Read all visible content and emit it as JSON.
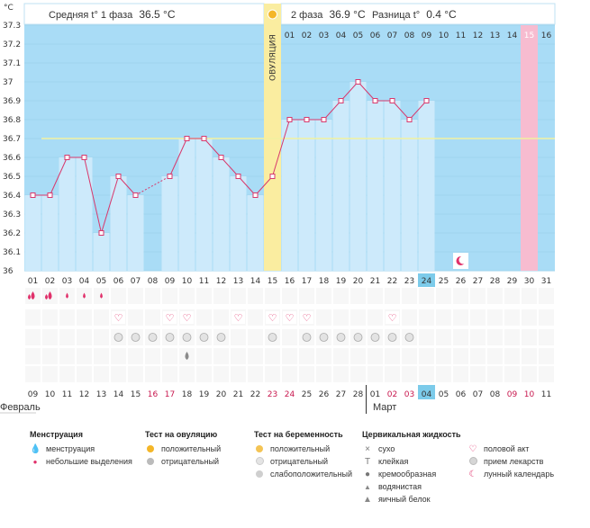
{
  "header": {
    "phase1_label": "Средняя t° 1 фаза",
    "phase1_value": "36.5 °C",
    "phase2_label": "2 фаза",
    "phase2_value": "36.9 °C",
    "diff_label": "Разница t°",
    "diff_value": "0.4 °C",
    "ovulation_label": "ОВУЛЯЦИЯ"
  },
  "axis": {
    "unit": "°C"
  },
  "months": {
    "left": "Февраль",
    "right": "Март"
  },
  "colors": {
    "bar_fill": "#cdeafb",
    "background": "#a9dcf6",
    "line": "#d8386c",
    "ovulation": "#faeda0",
    "highlight_day": "#f7bcd0",
    "coverline": "#f2f2a0"
  },
  "chart_data": {
    "type": "bar",
    "ylim": [
      36.0,
      37.3
    ],
    "yticks": [
      "36",
      "36.1",
      "36.2",
      "36.3",
      "36.4",
      "36.5",
      "36.6",
      "36.7",
      "36.8",
      "36.9",
      "37",
      "37.1",
      "37.2",
      "37.3"
    ],
    "coverline": 36.7,
    "cycle_days": [
      "01",
      "02",
      "03",
      "04",
      "05",
      "06",
      "07",
      "08",
      "09",
      "10",
      "11",
      "12",
      "13",
      "14",
      "15",
      "16",
      "17",
      "18",
      "19",
      "20",
      "21",
      "22",
      "23",
      "24",
      "25",
      "26",
      "27",
      "28",
      "29",
      "30",
      "31"
    ],
    "values": [
      36.4,
      36.4,
      36.6,
      36.6,
      36.2,
      36.5,
      36.4,
      null,
      36.5,
      36.7,
      36.7,
      36.6,
      36.5,
      36.4,
      36.5,
      36.8,
      36.8,
      36.8,
      36.9,
      37.0,
      36.9,
      36.9,
      36.8,
      36.9,
      null,
      null,
      null,
      null,
      null,
      null,
      null
    ],
    "phase2_day_numbers": [
      "01",
      "02",
      "03",
      "04",
      "05",
      "06",
      "07",
      "08",
      "09",
      "10",
      "11",
      "12",
      "13",
      "14",
      "15",
      "16"
    ],
    "calendar_dates": [
      "09",
      "10",
      "11",
      "12",
      "13",
      "14",
      "15",
      "16",
      "17",
      "18",
      "19",
      "20",
      "21",
      "22",
      "23",
      "24",
      "25",
      "26",
      "27",
      "28",
      "01",
      "02",
      "03",
      "04",
      "05",
      "06",
      "07",
      "08",
      "09",
      "10",
      "11"
    ],
    "weekend_days": [
      7,
      8,
      14,
      15,
      21,
      22,
      28,
      29
    ],
    "ovulation_day": 15,
    "current_day": 24,
    "highlight_day": 30,
    "moon_day": 26,
    "markers": {
      "menstruation": [
        1,
        2,
        3,
        4,
        5
      ],
      "intercourse": [
        6,
        9,
        10,
        13,
        15,
        16,
        17,
        22
      ],
      "medication": [
        6,
        7,
        8,
        9,
        10,
        11,
        12,
        15,
        17,
        18,
        19,
        20,
        21,
        22,
        23
      ],
      "watery": [
        10
      ]
    }
  },
  "legend": {
    "menstruation": {
      "title": "Менструация",
      "items": [
        "менструация",
        "небольшие выделения"
      ]
    },
    "ovulation_test": {
      "title": "Тест на овуляцию",
      "items": [
        "положительный",
        "отрицательный"
      ]
    },
    "pregnancy_test": {
      "title": "Тест на беременность",
      "items": [
        "положительный",
        "отрицательный",
        "слабоположительный"
      ]
    },
    "cervical": {
      "title": "Цервикальная жидкость",
      "items": [
        "сухо",
        "клейкая",
        "кремообразная",
        "водянистая",
        "яичный белок"
      ]
    },
    "other": {
      "items": [
        "половой акт",
        "прием лекарств",
        "лунный календарь"
      ]
    }
  }
}
